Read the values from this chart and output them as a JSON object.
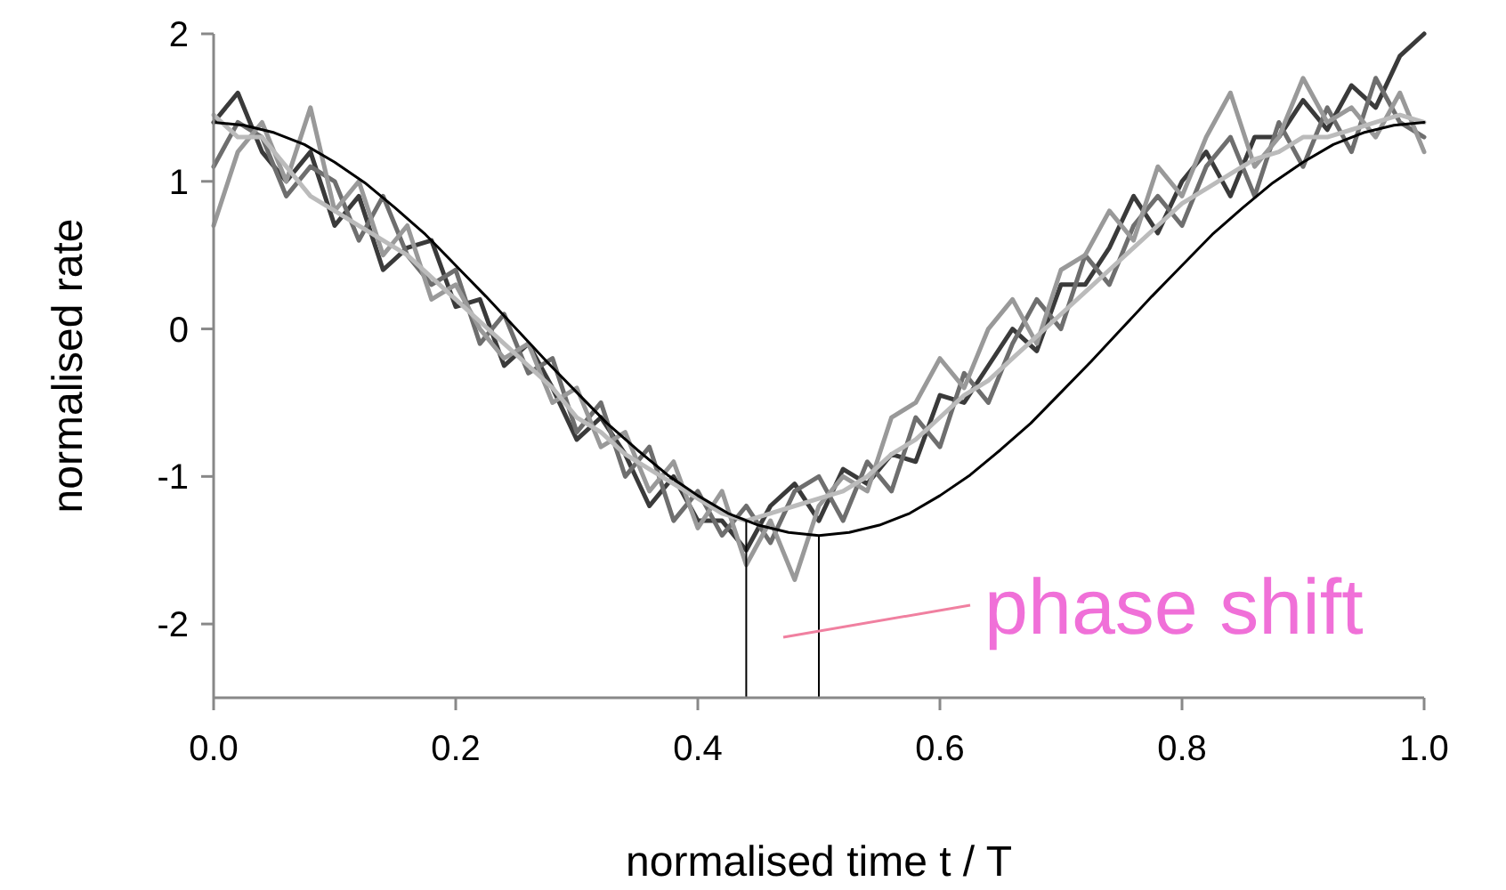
{
  "chart_data": {
    "type": "line",
    "xlabel": "normalised time t / T",
    "ylabel": "normalised rate",
    "x": [
      0,
      0.02,
      0.04,
      0.06,
      0.08,
      0.1,
      0.12,
      0.14,
      0.16,
      0.18,
      0.2,
      0.22,
      0.24,
      0.26,
      0.28,
      0.3,
      0.32,
      0.34,
      0.36,
      0.38,
      0.4,
      0.42,
      0.44,
      0.46,
      0.48,
      0.5,
      0.52,
      0.54,
      0.56,
      0.58,
      0.6,
      0.62,
      0.64,
      0.66,
      0.68,
      0.7,
      0.72,
      0.74,
      0.76,
      0.78,
      0.8,
      0.82,
      0.84,
      0.86,
      0.88,
      0.9,
      0.92,
      0.94,
      0.96,
      0.98,
      1.0
    ],
    "series": [
      {
        "color": "#3a3a3a",
        "values": [
          1.4,
          1.6,
          1.2,
          1.0,
          1.2,
          0.7,
          0.9,
          0.4,
          0.55,
          0.6,
          0.15,
          0.2,
          -0.25,
          -0.1,
          -0.4,
          -0.75,
          -0.6,
          -0.85,
          -1.2,
          -1.0,
          -1.3,
          -1.3,
          -1.5,
          -1.2,
          -1.05,
          -1.3,
          -0.95,
          -1.05,
          -0.85,
          -0.9,
          -0.45,
          -0.5,
          -0.25,
          0,
          -0.15,
          0.3,
          0.3,
          0.55,
          0.9,
          0.65,
          1.0,
          1.2,
          0.9,
          1.3,
          1.3,
          1.55,
          1.35,
          1.65,
          1.5,
          1.85,
          2.0
        ]
      },
      {
        "color": "#6e6e6e",
        "values": [
          1.1,
          1.4,
          1.3,
          0.9,
          1.1,
          1.0,
          0.6,
          0.9,
          0.5,
          0.3,
          0.4,
          -0.1,
          0.1,
          -0.3,
          -0.2,
          -0.7,
          -0.5,
          -1.0,
          -0.8,
          -1.3,
          -1.1,
          -1.4,
          -1.2,
          -1.45,
          -1.1,
          -1.0,
          -1.3,
          -0.9,
          -1.1,
          -0.6,
          -0.8,
          -0.3,
          -0.5,
          -0.1,
          0.2,
          0.0,
          0.5,
          0.3,
          0.7,
          0.9,
          0.7,
          1.1,
          1.3,
          0.9,
          1.4,
          1.1,
          1.5,
          1.2,
          1.7,
          1.4,
          1.3
        ]
      },
      {
        "color": "#999999",
        "values": [
          0.7,
          1.2,
          1.4,
          1.0,
          1.5,
          0.8,
          1.0,
          0.5,
          0.7,
          0.2,
          0.3,
          0.0,
          -0.2,
          -0.1,
          -0.5,
          -0.4,
          -0.8,
          -0.7,
          -1.1,
          -0.9,
          -1.35,
          -1.1,
          -1.6,
          -1.3,
          -1.7,
          -1.2,
          -1.0,
          -1.1,
          -0.6,
          -0.5,
          -0.2,
          -0.4,
          0.0,
          0.2,
          -0.1,
          0.4,
          0.5,
          0.8,
          0.6,
          1.1,
          0.9,
          1.3,
          1.6,
          1.1,
          1.3,
          1.7,
          1.4,
          1.5,
          1.3,
          1.6,
          1.2
        ]
      },
      {
        "color": "#bbbbbb",
        "values": [
          1.45,
          1.3,
          1.3,
          1.1,
          0.9,
          0.8,
          0.7,
          0.6,
          0.5,
          0.35,
          0.2,
          0.05,
          -0.1,
          -0.25,
          -0.4,
          -0.6,
          -0.7,
          -0.85,
          -0.95,
          -1.05,
          -1.15,
          -1.25,
          -1.3,
          -1.25,
          -1.2,
          -1.15,
          -1.1,
          -1.0,
          -0.85,
          -0.75,
          -0.6,
          -0.45,
          -0.35,
          -0.2,
          -0.05,
          0.1,
          0.25,
          0.4,
          0.55,
          0.7,
          0.85,
          0.95,
          1.05,
          1.15,
          1.2,
          1.3,
          1.3,
          1.35,
          1.4,
          1.45,
          1.4
        ]
      },
      {
        "color": "#000000",
        "x": [
          0,
          0.025,
          0.05,
          0.075,
          0.1,
          0.125,
          0.15,
          0.175,
          0.2,
          0.225,
          0.25,
          0.275,
          0.3,
          0.325,
          0.35,
          0.375,
          0.4,
          0.425,
          0.45,
          0.475,
          0.5,
          0.525,
          0.55,
          0.575,
          0.6,
          0.625,
          0.65,
          0.675,
          0.7,
          0.725,
          0.75,
          0.775,
          0.8,
          0.825,
          0.85,
          0.875,
          0.9,
          0.925,
          0.95,
          0.975,
          1.0
        ],
        "values": [
          1.4,
          1.38,
          1.33,
          1.25,
          1.13,
          0.99,
          0.82,
          0.64,
          0.43,
          0.22,
          0,
          -0.22,
          -0.43,
          -0.64,
          -0.82,
          -0.99,
          -1.13,
          -1.25,
          -1.33,
          -1.38,
          -1.4,
          -1.38,
          -1.33,
          -1.25,
          -1.13,
          -0.99,
          -0.82,
          -0.64,
          -0.43,
          -0.22,
          0,
          0.22,
          0.43,
          0.64,
          0.82,
          0.99,
          1.13,
          1.25,
          1.33,
          1.38,
          1.4
        ]
      }
    ],
    "xlim": [
      0,
      1
    ],
    "ylim": [
      -2.5,
      2
    ],
    "xticks": [
      {
        "value": 0,
        "label": "0.0"
      },
      0.2,
      0.4,
      0.6,
      0.8,
      {
        "value": 1,
        "label": "1.0"
      }
    ],
    "yticks": [
      -2,
      -1,
      0,
      1,
      2
    ],
    "ref_lines": [
      {
        "axis": "x",
        "value": 0.44,
        "color": "#000000"
      },
      {
        "axis": "x",
        "value": 0.5,
        "color": "#000000"
      }
    ],
    "annotations": [
      "phase shift"
    ],
    "grid": false
  }
}
